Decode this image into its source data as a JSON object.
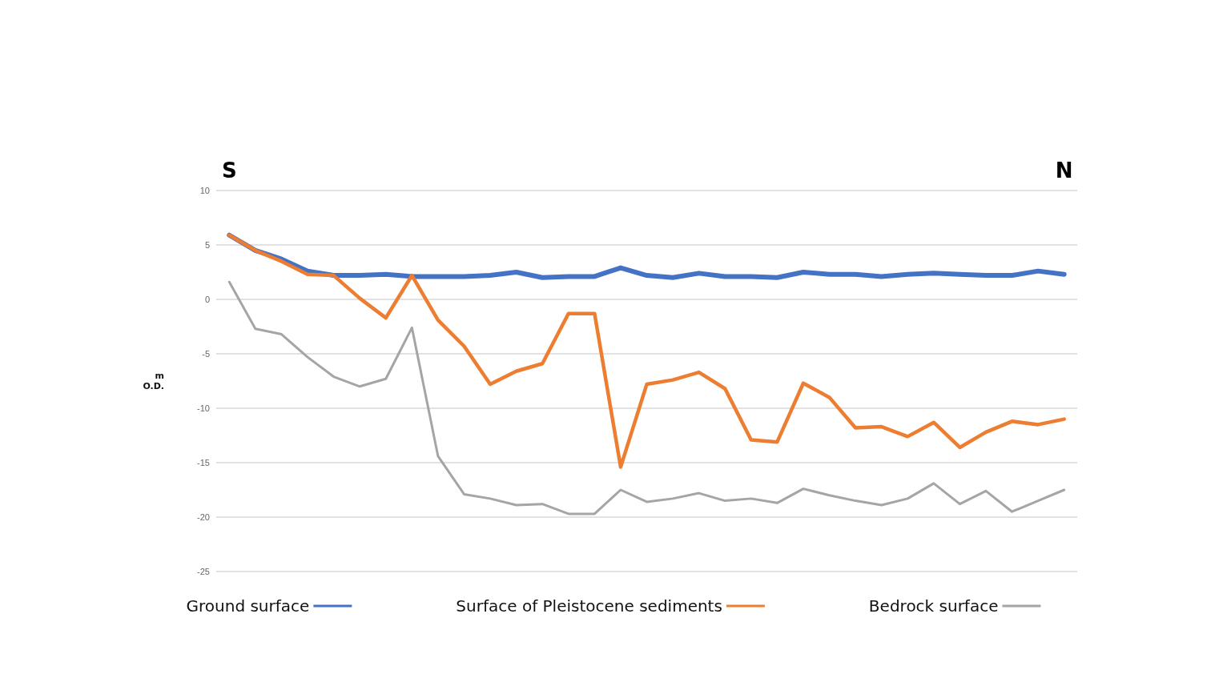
{
  "chart_data": {
    "type": "line",
    "ylabel": "m\nO.D.",
    "annotations": [
      "S",
      "N"
    ],
    "categories": [
      null,
      null,
      null,
      null,
      null,
      null,
      null,
      null,
      null,
      null,
      null,
      null,
      null,
      null,
      null,
      null,
      null,
      null,
      null,
      null,
      null,
      null,
      null,
      null,
      null,
      null,
      null,
      null,
      null,
      null,
      null,
      null,
      null
    ],
    "series": [
      {
        "name": "Ground surface",
        "color": "#4472c4",
        "values": [
          5.9,
          4.5,
          3.7,
          2.6,
          2.2,
          2.2,
          2.3,
          2.1,
          2.1,
          2.1,
          2.2,
          2.5,
          2.0,
          2.1,
          2.1,
          2.9,
          2.2,
          2.0,
          2.4,
          2.1,
          2.1,
          2.0,
          2.5,
          2.3,
          2.3,
          2.1,
          2.3,
          2.4,
          2.3,
          2.2,
          2.2,
          2.6,
          2.3
        ]
      },
      {
        "name": "Surface of Pleistocene sediments",
        "color": "#ed7d31",
        "values": [
          5.9,
          4.5,
          3.5,
          2.3,
          2.2,
          0.1,
          -1.7,
          2.2,
          -1.9,
          -4.3,
          -7.8,
          -6.6,
          -5.9,
          -1.3,
          -1.3,
          -15.4,
          -7.8,
          -7.4,
          -6.7,
          -8.2,
          -12.9,
          -13.1,
          -7.7,
          -9.0,
          -11.8,
          -11.7,
          -12.6,
          -11.3,
          -13.6,
          -12.2,
          -11.2,
          -11.5,
          -11.0
        ]
      },
      {
        "name": "Bedrock surface",
        "color": "#a5a5a5",
        "values": [
          1.6,
          -2.7,
          -3.2,
          -5.3,
          -7.1,
          -8.0,
          -7.3,
          -2.6,
          -14.4,
          -17.9,
          -18.3,
          -18.9,
          -18.8,
          -19.7,
          -19.7,
          -17.5,
          -18.6,
          -18.3,
          -17.8,
          -18.5,
          -18.3,
          -18.7,
          -17.4,
          -18.0,
          -18.5,
          -18.9,
          -18.3,
          -16.9,
          -18.8,
          -17.6,
          -19.5,
          -18.5,
          -17.5
        ]
      }
    ],
    "ylim": [
      -25,
      10
    ],
    "yticks": [
      -25,
      -20,
      -15,
      -10,
      -5,
      0,
      5,
      10
    ],
    "grid": "y",
    "legend": "bottom",
    "marker": "none",
    "line_style": "solid",
    "tick_labels": "y"
  }
}
